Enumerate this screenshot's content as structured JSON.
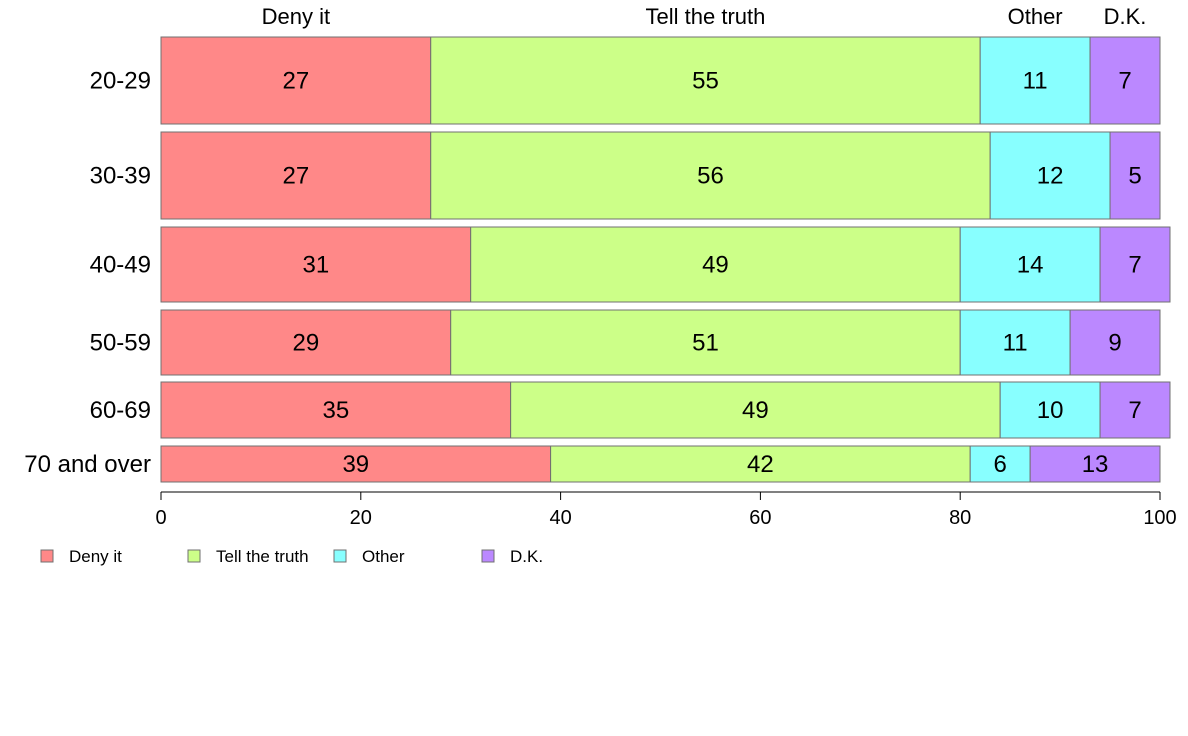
{
  "chart_data": {
    "type": "bar",
    "orientation": "horizontal",
    "stacked": true,
    "categories": [
      "20-29",
      "30-39",
      "40-49",
      "50-59",
      "60-69",
      "70 and over"
    ],
    "series": [
      {
        "name": "Deny it",
        "values": [
          27,
          27,
          31,
          29,
          35,
          39
        ],
        "color": "#ff8888"
      },
      {
        "name": "Tell the truth",
        "values": [
          55,
          56,
          49,
          51,
          49,
          42
        ],
        "color": "#ccff88"
      },
      {
        "name": "Other",
        "values": [
          11,
          12,
          14,
          11,
          10,
          6
        ],
        "color": "#88ffff"
      },
      {
        "name": "D.K.",
        "values": [
          7,
          5,
          7,
          9,
          7,
          13
        ],
        "color": "#bb88ff"
      }
    ],
    "xlim": [
      0,
      100
    ],
    "xticks": [
      0,
      20,
      40,
      60,
      80,
      100
    ],
    "grid": false,
    "legend_position": "bottom-left"
  }
}
